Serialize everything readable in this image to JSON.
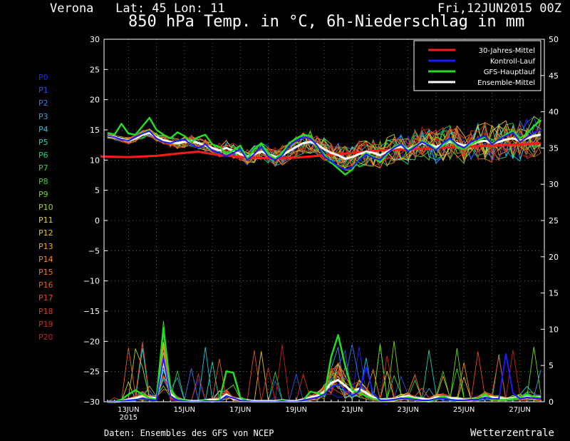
{
  "header": {
    "location": "Verona   Lat: 45 Lon: 11",
    "run": "Fri,12JUN2015 00Z",
    "title": "850 hPa Temp. in °C, 6h-Niederschlag in mm"
  },
  "footer": {
    "source": "Daten: Ensembles des GFS von NCEP",
    "brand": "Wetterzentrale"
  },
  "members": [
    "P0",
    "P1",
    "P2",
    "P3",
    "P4",
    "P5",
    "P6",
    "P7",
    "P8",
    "P9",
    "P10",
    "P11",
    "P12",
    "P13",
    "P14",
    "P15",
    "P16",
    "P17",
    "P18",
    "P19",
    "P20"
  ],
  "member_colors": [
    "#1d2df0",
    "#2a55f4",
    "#2e7cf5",
    "#24a4f2",
    "#12c6e6",
    "#18d6b4",
    "#20d57a",
    "#26d64a",
    "#40d02a",
    "#74d818",
    "#a8d81a",
    "#d6d81e",
    "#e8c41a",
    "#eea81a",
    "#f28e1e",
    "#f0741e",
    "#ea5c1e",
    "#e6481c",
    "#e0381c",
    "#d62a1a",
    "#c81e1a"
  ],
  "chart_data": {
    "type": "line",
    "x_ticks": [
      "13JUN",
      "15JUN",
      "17JUN",
      "19JUN",
      "21JUN",
      "23JUN",
      "25JUN",
      "27JUN"
    ],
    "x_tick_year": "2015",
    "x_range_days": [
      12.125,
      27.875
    ],
    "y_left": {
      "label": "",
      "range": [
        -30,
        30
      ],
      "ticks": [
        30,
        25,
        20,
        15,
        10,
        5,
        0,
        -5,
        -10,
        -15,
        -20,
        -25,
        -30
      ]
    },
    "y_right": {
      "label": "",
      "range": [
        0,
        50
      ],
      "ticks": [
        50,
        45,
        40,
        35,
        30,
        25,
        20,
        15,
        10,
        5,
        0
      ]
    },
    "grid": true,
    "legend_position": "top-right",
    "legend": [
      {
        "label": "30-Jahres-Mittel",
        "color": "#ff1a1a"
      },
      {
        "label": "Kontroll-Lauf",
        "color": "#1a1aff"
      },
      {
        "label": "GFS-Hauptlauf",
        "color": "#22dd22"
      },
      {
        "label": "Ensemble-Mittel",
        "color": "#ffffff"
      }
    ],
    "x_days": [
      12.25,
      12.5,
      12.75,
      13,
      13.25,
      13.5,
      13.75,
      14,
      14.25,
      14.5,
      14.75,
      15,
      15.25,
      15.5,
      15.75,
      16,
      16.25,
      16.5,
      16.75,
      17,
      17.25,
      17.5,
      17.75,
      18,
      18.25,
      18.5,
      18.75,
      19,
      19.25,
      19.5,
      19.75,
      20,
      20.25,
      20.5,
      20.75,
      21,
      21.25,
      21.5,
      21.75,
      22,
      22.25,
      22.5,
      22.75,
      23,
      23.25,
      23.5,
      23.75,
      24,
      24.25,
      24.5,
      24.75,
      25,
      25.25,
      25.5,
      25.75,
      26,
      26.25,
      26.5,
      26.75,
      27,
      27.25,
      27.5,
      27.75
    ],
    "series": [
      {
        "name": "30-Jahres-Mittel",
        "axis": "left",
        "color": "#ff1a1a",
        "width": 3,
        "x": [
          12.0,
          13.0,
          14.0,
          15.0,
          15.5,
          16.0,
          17.0,
          18.0,
          19.0,
          20.0,
          21.0,
          22.0,
          23.0,
          24.0,
          25.0,
          26.0,
          27.0,
          27.75
        ],
        "y": [
          10.6,
          10.5,
          10.7,
          11.2,
          11.4,
          11.0,
          10.5,
          10.3,
          10.4,
          10.8,
          11.2,
          11.6,
          11.8,
          12.0,
          12.2,
          12.4,
          12.6,
          12.8
        ]
      },
      {
        "name": "Ensemble-Mittel",
        "axis": "left",
        "color": "#ffffff",
        "width": 3,
        "y": [
          14.0,
          13.8,
          13.5,
          13.2,
          13.6,
          14.2,
          14.5,
          13.8,
          13.3,
          13.0,
          12.8,
          13.0,
          13.2,
          12.8,
          12.4,
          12.0,
          11.6,
          12.0,
          11.5,
          11.0,
          10.6,
          11.0,
          11.4,
          11.0,
          10.5,
          10.8,
          11.5,
          12.2,
          12.8,
          13.0,
          12.6,
          11.8,
          11.2,
          10.8,
          10.2,
          10.5,
          11.0,
          11.4,
          11.2,
          10.8,
          11.4,
          12.0,
          12.2,
          11.8,
          12.4,
          12.8,
          12.6,
          12.2,
          12.6,
          13.0,
          12.8,
          12.4,
          12.6,
          13.0,
          13.2,
          12.8,
          13.0,
          13.4,
          13.6,
          13.2,
          13.6,
          14.0,
          14.2
        ]
      },
      {
        "name": "GFS-Hauptlauf",
        "axis": "left",
        "color": "#22dd22",
        "width": 2.5,
        "y": [
          14.5,
          14.2,
          16.0,
          14.4,
          14.2,
          15.6,
          17.0,
          15.0,
          14.2,
          13.6,
          14.6,
          14.0,
          13.0,
          13.8,
          14.2,
          12.6,
          12.2,
          11.0,
          11.6,
          12.4,
          10.2,
          11.8,
          12.8,
          11.0,
          10.2,
          11.2,
          12.8,
          13.6,
          14.2,
          14.0,
          12.2,
          11.0,
          9.6,
          8.6,
          7.6,
          8.4,
          10.2,
          11.2,
          10.6,
          9.6,
          11.0,
          12.2,
          12.6,
          11.6,
          12.4,
          13.0,
          12.6,
          11.8,
          12.4,
          13.4,
          12.2,
          11.8,
          12.6,
          13.2,
          13.8,
          12.8,
          13.4,
          14.2,
          14.8,
          13.6,
          14.4,
          15.6,
          16.6
        ]
      },
      {
        "name": "Kontroll-Lauf",
        "axis": "left",
        "color": "#1a1aff",
        "width": 2,
        "y": [
          14.0,
          13.8,
          13.4,
          13.2,
          13.8,
          14.4,
          14.8,
          13.6,
          13.0,
          12.8,
          13.2,
          13.4,
          12.6,
          12.0,
          12.6,
          11.6,
          11.2,
          10.6,
          11.2,
          11.8,
          10.0,
          11.0,
          12.2,
          10.6,
          10.0,
          10.8,
          12.4,
          13.2,
          13.8,
          13.6,
          12.4,
          10.6,
          9.8,
          9.0,
          8.4,
          8.8,
          10.0,
          11.0,
          10.4,
          10.0,
          11.2,
          12.0,
          12.6,
          11.4,
          12.2,
          13.0,
          12.4,
          11.6,
          12.8,
          13.6,
          12.6,
          12.0,
          13.0,
          13.6,
          14.0,
          12.6,
          13.4,
          14.0,
          14.6,
          13.0,
          13.8,
          14.6,
          15.0
        ]
      },
      {
        "name": "Ensemble-Mittel",
        "axis": "right",
        "color": "#ffffff",
        "width": 3,
        "y": [
          0.0,
          0.0,
          0.1,
          0.3,
          0.5,
          0.8,
          0.6,
          0.5,
          5.6,
          1.0,
          0.4,
          0.2,
          0.1,
          0.1,
          0.2,
          0.3,
          0.3,
          1.0,
          0.4,
          0.3,
          0.2,
          0.1,
          0.1,
          0.1,
          0.1,
          0.2,
          0.1,
          0.1,
          0.3,
          0.6,
          0.8,
          1.4,
          2.6,
          3.0,
          2.2,
          1.4,
          1.8,
          1.2,
          0.6,
          0.3,
          0.3,
          0.4,
          0.6,
          0.8,
          0.5,
          0.4,
          0.3,
          0.6,
          0.7,
          0.5,
          0.4,
          0.3,
          0.3,
          0.4,
          0.8,
          0.6,
          0.5,
          0.4,
          0.5,
          0.6,
          0.8,
          0.7,
          0.6
        ]
      },
      {
        "name": "GFS-Hauptlauf",
        "axis": "right",
        "color": "#22dd22",
        "width": 2.5,
        "y": [
          0.0,
          0.0,
          0.3,
          1.0,
          1.6,
          1.0,
          0.5,
          0.3,
          10.2,
          1.8,
          0.4,
          0.2,
          0.0,
          0.0,
          0.2,
          0.0,
          0.2,
          4.2,
          4.0,
          0.6,
          0.1,
          0.0,
          0.0,
          0.0,
          0.0,
          0.2,
          0.0,
          0.0,
          0.2,
          1.4,
          1.2,
          0.8,
          6.2,
          9.2,
          5.0,
          1.6,
          1.2,
          0.8,
          0.4,
          0.2,
          0.2,
          0.3,
          0.4,
          0.6,
          0.4,
          0.2,
          0.0,
          0.4,
          0.8,
          0.3,
          0.2,
          0.2,
          0.3,
          0.4,
          1.0,
          0.4,
          0.3,
          0.3,
          0.4,
          0.6,
          1.0,
          0.7,
          0.5
        ]
      },
      {
        "name": "Kontroll-Lauf",
        "axis": "right",
        "color": "#1a1aff",
        "width": 2,
        "y": [
          0.0,
          0.0,
          0.1,
          0.2,
          0.3,
          0.4,
          0.3,
          0.2,
          6.0,
          0.8,
          0.2,
          0.1,
          0.0,
          0.0,
          0.1,
          0.1,
          0.1,
          0.8,
          0.5,
          0.2,
          0.1,
          0.0,
          0.0,
          0.0,
          0.0,
          0.1,
          0.0,
          0.0,
          0.2,
          0.4,
          0.6,
          1.0,
          2.0,
          2.4,
          1.6,
          0.8,
          1.4,
          4.8,
          1.2,
          0.2,
          0.2,
          0.3,
          0.5,
          0.4,
          0.3,
          0.2,
          0.2,
          0.4,
          0.5,
          0.3,
          0.2,
          0.2,
          0.3,
          0.3,
          0.6,
          0.4,
          0.4,
          6.6,
          1.2,
          0.4,
          0.6,
          0.5,
          0.4
        ]
      }
    ]
  }
}
